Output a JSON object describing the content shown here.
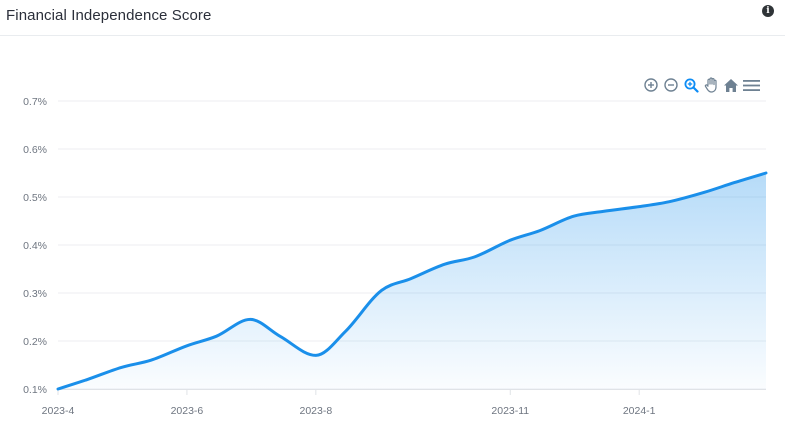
{
  "header": {
    "title": "Financial Independence Score",
    "info_icon": "info-icon"
  },
  "toolbar": {
    "icons": [
      "zoom-in-icon",
      "zoom-out-icon",
      "selection-zoom-icon",
      "pan-hand-icon",
      "home-reset-icon",
      "menu-icon"
    ],
    "active_color": "#0c8cf5",
    "icon_color": "#6e8192"
  },
  "chart_data": {
    "type": "area",
    "title": "Financial Independence Score",
    "xlabel": "",
    "ylabel": "",
    "ylim": [
      0.1,
      0.7
    ],
    "y_ticks": [
      "0.1%",
      "0.2%",
      "0.3%",
      "0.4%",
      "0.5%",
      "0.6%",
      "0.7%"
    ],
    "x_ticks": [
      "2023-4",
      "2023-6",
      "2023-8",
      "2023-11",
      "2024-1"
    ],
    "x_tick_dates": [
      "2023-04-01",
      "2023-06-01",
      "2023-08-01",
      "2023-11-01",
      "2024-01-01"
    ],
    "grid": true,
    "line_color": "#1a8fea",
    "series": [
      {
        "x": [
          "2023-04-01",
          "2023-04-15",
          "2023-05-01",
          "2023-05-15",
          "2023-06-01",
          "2023-06-15",
          "2023-07-01",
          "2023-07-15",
          "2023-08-01",
          "2023-08-15",
          "2023-09-01",
          "2023-09-15",
          "2023-10-01",
          "2023-10-15",
          "2023-11-01",
          "2023-11-15",
          "2023-12-01",
          "2023-12-15",
          "2024-01-01",
          "2024-01-15",
          "2024-02-01",
          "2024-02-15",
          "2024-03-01"
        ],
        "values": [
          0.1,
          0.12,
          0.145,
          0.16,
          0.19,
          0.21,
          0.245,
          0.21,
          0.17,
          0.22,
          0.305,
          0.33,
          0.36,
          0.375,
          0.41,
          0.43,
          0.46,
          0.47,
          0.48,
          0.49,
          0.51,
          0.53,
          0.55
        ]
      }
    ]
  }
}
